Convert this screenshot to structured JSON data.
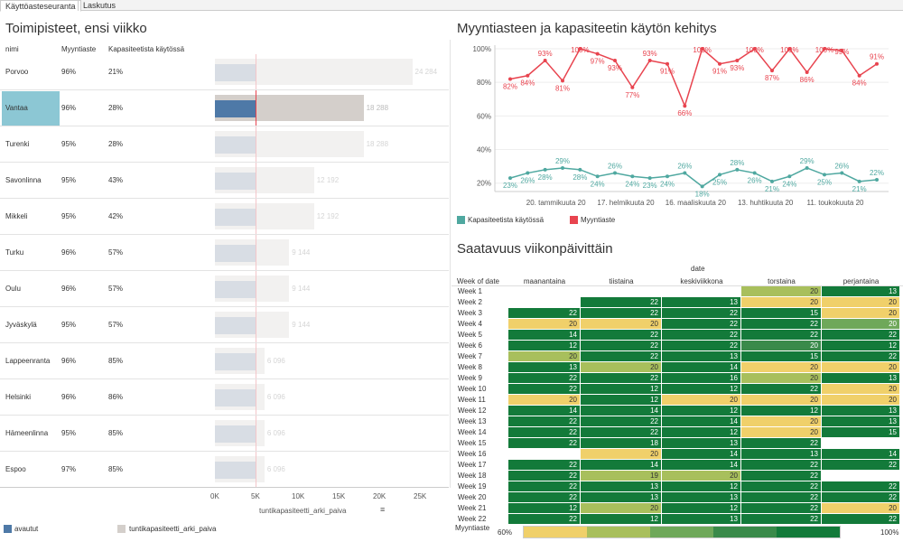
{
  "tabs": [
    "Käyttöasteseuranta",
    "Laskutus"
  ],
  "colors": {
    "open": "#4e79a7",
    "capacity": "#d4cfcb",
    "kap_line": "#4fa8a0",
    "myy_line": "#e8444f",
    "scale": [
      "#f0d06a",
      "#a8bf5c",
      "#6fa85a",
      "#3a8a4a",
      "#137a3a"
    ]
  },
  "left": {
    "title": "Toimipisteet, ensi viikko",
    "headers": {
      "nimi": "nimi",
      "myyntiaste": "Myyntiaste",
      "kapasiteetti": "Kapasiteetista käytössä"
    },
    "rows": [
      {
        "nimi": "Porvoo",
        "myyntiaste": "96%",
        "kapasiteetti": "21%",
        "label": "24 284",
        "capacity": 24284,
        "open": 5100,
        "selected": false
      },
      {
        "nimi": "Vantaa",
        "myyntiaste": "96%",
        "kapasiteetti": "28%",
        "label": "18 288",
        "capacity": 18288,
        "open": 5100,
        "selected": true
      },
      {
        "nimi": "Turenki",
        "myyntiaste": "95%",
        "kapasiteetti": "28%",
        "label": "18 288",
        "capacity": 18288,
        "open": 5100,
        "selected": false
      },
      {
        "nimi": "Savonlinna",
        "myyntiaste": "95%",
        "kapasiteetti": "43%",
        "label": "12 192",
        "capacity": 12192,
        "open": 5100,
        "selected": false
      },
      {
        "nimi": "Mikkeli",
        "myyntiaste": "95%",
        "kapasiteetti": "42%",
        "label": "12 192",
        "capacity": 12192,
        "open": 5100,
        "selected": false
      },
      {
        "nimi": "Turku",
        "myyntiaste": "96%",
        "kapasiteetti": "57%",
        "label": "9 144",
        "capacity": 9144,
        "open": 5100,
        "selected": false
      },
      {
        "nimi": "Oulu",
        "myyntiaste": "96%",
        "kapasiteetti": "57%",
        "label": "9 144",
        "capacity": 9144,
        "open": 5100,
        "selected": false
      },
      {
        "nimi": "Jyväskylä",
        "myyntiaste": "95%",
        "kapasiteetti": "57%",
        "label": "9 144",
        "capacity": 9144,
        "open": 5100,
        "selected": false
      },
      {
        "nimi": "Lappeenranta",
        "myyntiaste": "96%",
        "kapasiteetti": "85%",
        "label": "6 096",
        "capacity": 6096,
        "open": 5100,
        "selected": false
      },
      {
        "nimi": "Helsinki",
        "myyntiaste": "96%",
        "kapasiteetti": "86%",
        "label": "6 096",
        "capacity": 6096,
        "open": 5100,
        "selected": false
      },
      {
        "nimi": "Hämeenlinna",
        "myyntiaste": "95%",
        "kapasiteetti": "85%",
        "label": "6 096",
        "capacity": 6096,
        "open": 5100,
        "selected": false
      },
      {
        "nimi": "Espoo",
        "myyntiaste": "97%",
        "kapasiteetti": "85%",
        "label": "6 096",
        "capacity": 6096,
        "open": 5100,
        "selected": false
      }
    ],
    "axis_ticks": [
      "0K",
      "5K",
      "10K",
      "15K",
      "20K",
      "25K"
    ],
    "axis_title": "tuntikapasiteetti_arki_paiva",
    "reference": 5000,
    "legend": [
      "avautut",
      "tuntikapasiteetti_arki_paiva"
    ]
  },
  "line": {
    "title": "Myyntiasteen ja kapasiteetin käytön kehitys",
    "y_ticks": [
      "100%",
      "80%",
      "60%",
      "40%",
      "20%"
    ],
    "x_ticks": [
      "20. tammikuuta 20",
      "17. helmikuuta 20",
      "16. maaliskuuta 20",
      "13. huhtikuuta 20",
      "11. toukokuuta 20"
    ],
    "legend": [
      "Kapasiteetista käytössä",
      "Myyntiaste"
    ]
  },
  "heatmap": {
    "title": "Saatavuus viikonpäivittäin",
    "corner": "Week of date",
    "group_header": "date",
    "days": [
      "maanantaina",
      "tiistaina",
      "keskiviikkona",
      "torstaina",
      "perjantaina"
    ],
    "legend_title": "Myyntiaste",
    "legend_min": "60%",
    "legend_max": "100%"
  },
  "chart_data": [
    {
      "type": "bar",
      "title": "Toimipisteet, ensi viikko",
      "categories": [
        "Porvoo",
        "Vantaa",
        "Turenki",
        "Savonlinna",
        "Mikkeli",
        "Turku",
        "Oulu",
        "Jyväskylä",
        "Lappeenranta",
        "Helsinki",
        "Hämeenlinna",
        "Espoo"
      ],
      "series": [
        {
          "name": "tuntikapasiteetti_arki_paiva",
          "values": [
            24284,
            18288,
            18288,
            12192,
            12192,
            9144,
            9144,
            9144,
            6096,
            6096,
            6096,
            6096
          ]
        },
        {
          "name": "avautut",
          "values": [
            5100,
            5100,
            5100,
            5100,
            5100,
            5100,
            5100,
            5100,
            5100,
            5100,
            5100,
            5100
          ]
        }
      ],
      "xlabel": "tuntikapasiteetti_arki_paiva",
      "xlim": [
        0,
        27000
      ]
    },
    {
      "type": "line",
      "title": "Myyntiasteen ja kapasiteetin käytön kehitys",
      "x_count": 22,
      "series": [
        {
          "name": "Myyntiaste",
          "values": [
            82,
            84,
            93,
            81,
            100,
            97,
            93,
            77,
            93,
            91,
            66,
            100,
            91,
            93,
            100,
            87,
            100,
            86,
            100,
            99,
            84,
            91
          ],
          "labels": [
            "82%",
            "84%",
            "93%",
            "81%",
            "100%",
            "97%",
            "93%",
            "77%",
            "93%",
            "91%",
            "66%",
            "100%",
            "91%",
            "93%",
            "100%",
            "87%",
            "100%",
            "86%",
            "100%",
            "99%",
            "84%",
            "91%"
          ]
        },
        {
          "name": "Kapasiteetista käytössä",
          "values": [
            23,
            26,
            28,
            29,
            28,
            24,
            26,
            24,
            23,
            24,
            26,
            18,
            25,
            28,
            26,
            21,
            24,
            29,
            25,
            26,
            21,
            22
          ],
          "labels": [
            "23%",
            "26%",
            "28%",
            "29%",
            "28%",
            "24%",
            "26%",
            "24%",
            "23%",
            "24%",
            "26%",
            "18%",
            "25%",
            "28%",
            "26%",
            "21%",
            "24%",
            "29%",
            "25%",
            "26%",
            "21%",
            "22%"
          ]
        }
      ],
      "ylim": [
        15,
        100
      ],
      "y_ticks": [
        "100%",
        "80%",
        "60%",
        "40%",
        "20%"
      ]
    },
    {
      "type": "heatmap",
      "title": "Saatavuus viikonpäivittäin",
      "rows": [
        "Week 1",
        "Week 2",
        "Week 3",
        "Week 4",
        "Week 5",
        "Week 6",
        "Week 7",
        "Week 8",
        "Week 9",
        "Week 10",
        "Week 11",
        "Week 12",
        "Week 13",
        "Week 14",
        "Week 15",
        "Week 16",
        "Week 17",
        "Week 18",
        "Week 19",
        "Week 20",
        "Week 21",
        "Week 22"
      ],
      "columns": [
        "maanantaina",
        "tiistaina",
        "keskiviikkona",
        "torstaina",
        "perjantaina"
      ],
      "values": [
        [
          null,
          null,
          null,
          "20",
          "13"
        ],
        [
          null,
          "22",
          "13",
          "20",
          "20"
        ],
        [
          "22",
          "22",
          "22",
          "15",
          "20"
        ],
        [
          "20",
          "20",
          "22",
          "22",
          "20"
        ],
        [
          "14",
          "22",
          "22",
          "22",
          "22"
        ],
        [
          "12",
          "22",
          "22",
          "20",
          "12"
        ],
        [
          "20",
          "22",
          "13",
          "15",
          "22"
        ],
        [
          "13",
          "20",
          "14",
          "20",
          "20"
        ],
        [
          "22",
          "22",
          "16",
          "20",
          "13"
        ],
        [
          "22",
          "12",
          "12",
          "22",
          "20"
        ],
        [
          "20",
          "12",
          "20",
          "20",
          "20"
        ],
        [
          "14",
          "14",
          "12",
          "12",
          "13"
        ],
        [
          "22",
          "22",
          "14",
          "20",
          "13"
        ],
        [
          "22",
          "22",
          "12",
          "20",
          "15"
        ],
        [
          "22",
          "18",
          "13",
          "22",
          null
        ],
        [
          null,
          "20",
          "14",
          "13",
          "14"
        ],
        [
          "22",
          "14",
          "14",
          "22",
          "22"
        ],
        [
          "22",
          "19",
          "20",
          "22",
          null
        ],
        [
          "22",
          "13",
          "12",
          "22",
          "22"
        ],
        [
          "22",
          "13",
          "13",
          "22",
          "22"
        ],
        [
          "12",
          "20",
          "12",
          "22",
          "20"
        ],
        [
          "22",
          "12",
          "13",
          "22",
          "22"
        ]
      ],
      "tones": [
        [
          null,
          null,
          null,
          1,
          4
        ],
        [
          null,
          4,
          4,
          0,
          0
        ],
        [
          4,
          4,
          4,
          4,
          0
        ],
        [
          0,
          0,
          4,
          4,
          2
        ],
        [
          4,
          4,
          4,
          4,
          4
        ],
        [
          4,
          4,
          4,
          3,
          4
        ],
        [
          1,
          4,
          4,
          4,
          4
        ],
        [
          4,
          1,
          4,
          0,
          0
        ],
        [
          4,
          4,
          4,
          1,
          4
        ],
        [
          4,
          4,
          4,
          4,
          0
        ],
        [
          0,
          4,
          0,
          0,
          0
        ],
        [
          4,
          4,
          4,
          4,
          4
        ],
        [
          4,
          4,
          4,
          0,
          4
        ],
        [
          4,
          4,
          4,
          0,
          4
        ],
        [
          4,
          4,
          4,
          4,
          null
        ],
        [
          null,
          0,
          4,
          4,
          4
        ],
        [
          4,
          4,
          4,
          4,
          4
        ],
        [
          4,
          1,
          1,
          4,
          null
        ],
        [
          4,
          4,
          4,
          4,
          4
        ],
        [
          4,
          4,
          4,
          4,
          4
        ],
        [
          4,
          1,
          4,
          4,
          0
        ],
        [
          4,
          4,
          4,
          4,
          4
        ]
      ]
    }
  ]
}
